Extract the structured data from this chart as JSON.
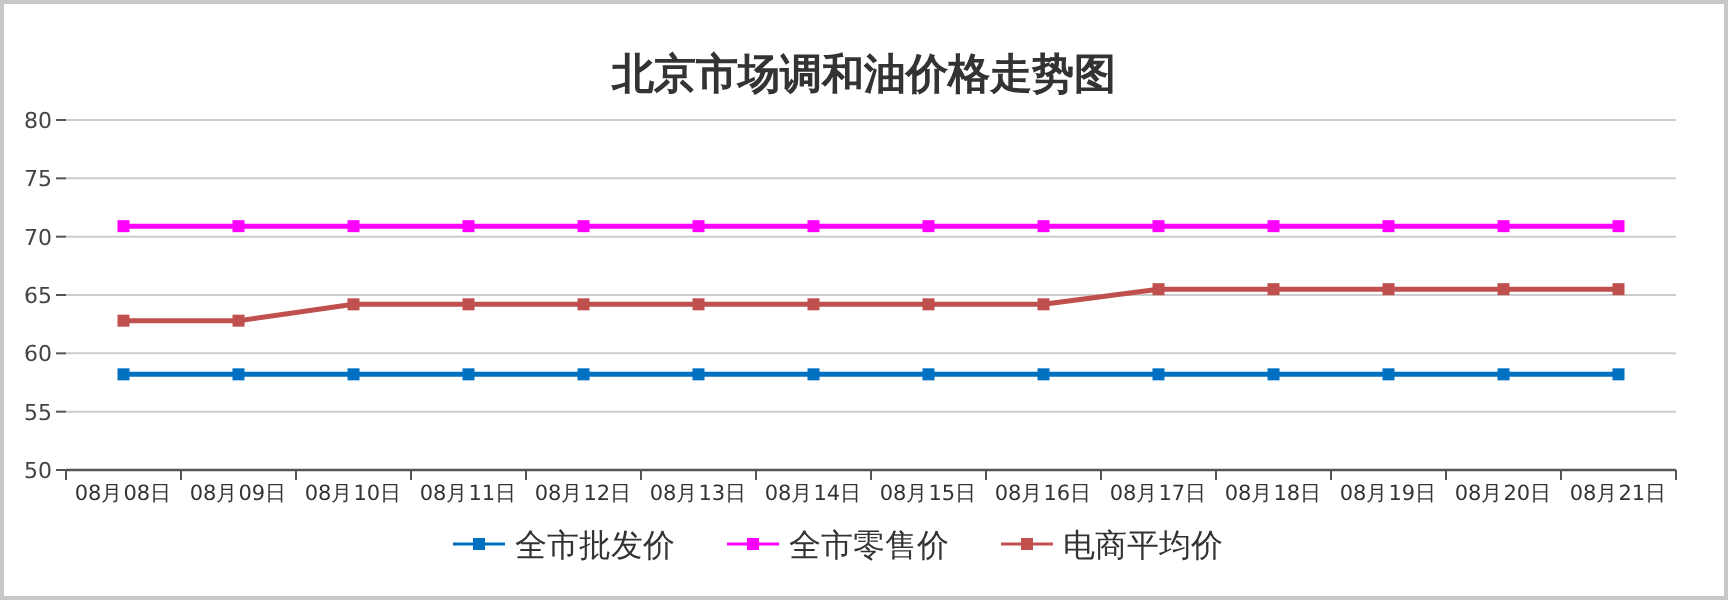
{
  "chart_data": {
    "type": "line",
    "title": "北京市场调和油价格走势图",
    "categories": [
      "08月08日",
      "08月09日",
      "08月10日",
      "08月11日",
      "08月12日",
      "08月13日",
      "08月14日",
      "08月15日",
      "08月16日",
      "08月17日",
      "08月18日",
      "08月19日",
      "08月20日",
      "08月21日"
    ],
    "series": [
      {
        "name": "全市批发价",
        "color": "#0070c0",
        "values": [
          58.2,
          58.2,
          58.2,
          58.2,
          58.2,
          58.2,
          58.2,
          58.2,
          58.2,
          58.2,
          58.2,
          58.2,
          58.2,
          58.2
        ]
      },
      {
        "name": "全市零售价",
        "color": "#ff00ff",
        "values": [
          70.9,
          70.9,
          70.9,
          70.9,
          70.9,
          70.9,
          70.9,
          70.9,
          70.9,
          70.9,
          70.9,
          70.9,
          70.9,
          70.9
        ]
      },
      {
        "name": "电商平均价",
        "color": "#c0504d",
        "values": [
          62.8,
          62.8,
          64.2,
          64.2,
          64.2,
          64.2,
          64.2,
          64.2,
          64.2,
          65.5,
          65.5,
          65.5,
          65.5,
          65.5
        ]
      }
    ],
    "ylim": [
      50,
      80
    ],
    "yticks": [
      50,
      55,
      60,
      65,
      70,
      75,
      80
    ],
    "grid": "y",
    "legend": "bottom",
    "marker": "square",
    "line_style": "solid"
  }
}
